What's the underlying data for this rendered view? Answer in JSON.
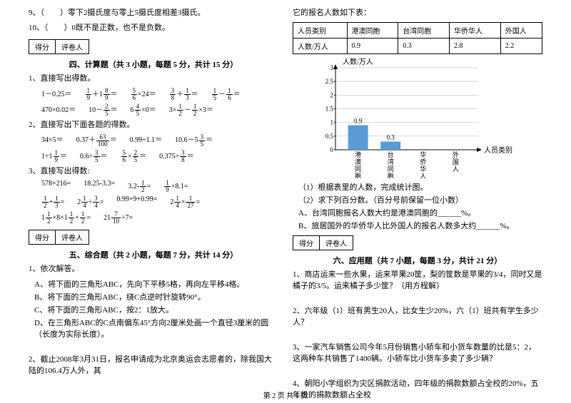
{
  "left": {
    "q9": "9、（　　）零下2摄氏度与零上5摄氏度相差3摄氏。",
    "q10": "10、（　　）0既不是正数，也不是负数。",
    "score_label1": "得分",
    "score_label2": "评卷人",
    "section4_title": "四、计算题（共 3 小题，每题 5 分，共计 15 分）",
    "calc1_title": "1、直接写出得数。",
    "calc1_items": [
      "1－0.25＝",
      "＋1＝",
      "×24＝",
      "＋＝",
      "－＝",
      "470×0.02＝",
      "10－＝",
      "6×0＝",
      "3×－×3＝"
    ],
    "calc2_title": "2、直接写出下面各题的得数。",
    "calc2_items": [
      "34×5＝",
      "0.37＋＝",
      "0.99÷1.1＝",
      "10.6－5＝",
      "1÷1＝",
      "0.6÷＝",
      "×＝",
      "0.375÷＝"
    ],
    "calc3_title": "3、直接写出得数:",
    "calc3_items": [
      "578+216=",
      "18.25-3.3=",
      "3.2-=",
      "×8.1=",
      "+=",
      "2÷=",
      "0.99×9+0.99=",
      "2×=",
      "1×8+1×=",
      "21÷7="
    ],
    "section5_title": "五、综合题（共 2 小题，每题 7 分，共计 14 分）",
    "comp1_title": "1、依次解答。",
    "comp1_a": "A、将下面的三角形ABC，先向下平移5格，再向左平移4格。",
    "comp1_b": "B、将下面的三角形ABC，绕C点逆时针旋转90°。",
    "comp1_c": "C、将下面的三角形ABC，按2：1放大。",
    "comp1_d": "D、在三角形ABC的C点南偏东45°方向2厘米处画一个直径3厘米的圆（长度为实际长度）。",
    "comp2": "2、截止2008年3月31日，报名申请成为北京奥运会志愿者的，除我国大陆的106.4万人外，其"
  },
  "right": {
    "table_intro": "它的报名人数如下表：",
    "table": {
      "headers": [
        "人员类别",
        "港澳同胞",
        "台湾同胞",
        "华侨华人",
        "外国人"
      ],
      "row_label": "人数/万人",
      "values": [
        "0.9",
        "0.3",
        "2.8",
        "2.2"
      ]
    },
    "chart": {
      "y_title": "人数/万人",
      "x_title": "人员类别",
      "y_max": 3,
      "y_ticks": [
        0,
        0.5,
        1,
        1.5,
        2,
        2.5,
        3
      ],
      "categories": [
        "港澳同胞",
        "台湾同胞",
        "华侨华人",
        "外国人"
      ],
      "values": [
        0.9,
        0.3,
        null,
        null
      ],
      "labels": [
        "0.9",
        "0.3",
        "",
        ""
      ],
      "bar_color": "#5b9bd5",
      "grid_color": "#b0b0b0",
      "axis_color": "#000000",
      "bg_color": "#ffffff"
    },
    "chart_q1": "（1）根据表里的人数，完成统计图。",
    "chart_q2": "（2）求下列百分数。（百分号前保留一位小数）",
    "chart_qa": "A、台湾同胞报名人数大约是港澳同胞的______%。",
    "chart_qb": "B、旅居国外的华侨华人比外国人的报名人数多大约______%。",
    "section6_title": "六、应用题（共 7 小题，每题 3 分，共计 21 分）",
    "app1": "1、商店运来一些水果，运来苹果20筐，梨的筐数是苹果的3/4，同时又是橘子的3/5。运来橘子多少筐？（用方程解）",
    "app2": "2、六年级（1）班有男生20人，比女生少20%，六（1）班共有学生多少人？",
    "app3": "3、一家汽车销售公司今年5月份销售小轿车和小货车数量的比是5：2，这两种车共销售了1400辆。小轿车比小货车多卖了多少辆？",
    "app4": "4、朝阳小学组织为灾区捐款活动，四年级的捐款数额占全校的20%，五年级的捐款数额占全校"
  },
  "footer": "第 2 页 共 5 页"
}
